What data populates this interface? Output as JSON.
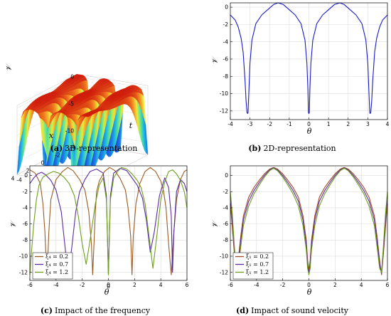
{
  "panels": [
    {
      "tag": "(a)",
      "caption": "3D-representation"
    },
    {
      "tag": "(b)",
      "caption": "2D-representation"
    },
    {
      "tag": "(c)",
      "caption": "Impact of the frequency"
    },
    {
      "tag": "(d)",
      "caption": "Impact of sound velocity"
    }
  ],
  "chart_data": [
    {
      "panel": "a",
      "type": "surface",
      "xlabel": "x",
      "ylabel": "t",
      "zlabel": "𝒱",
      "x_ticks": [
        "-4",
        "-2",
        "0",
        "2",
        "4"
      ],
      "t_ticks": [
        "-4",
        "-2",
        "0",
        "2",
        "4"
      ],
      "z_ticks": [
        "0",
        "-5",
        "-10"
      ],
      "xlim": [
        -4,
        4
      ],
      "tlim": [
        -4,
        4
      ],
      "zlim": [
        -12.3,
        0.5
      ],
      "colormap": [
        "#1726b8",
        "#1f5fe0",
        "#18b6e8",
        "#62e88a",
        "#f0e93a",
        "#f07a1c",
        "#d01c0c"
      ]
    },
    {
      "panel": "b",
      "type": "line",
      "xlabel": "θ",
      "ylabel": "𝒱",
      "xlim": [
        -4,
        4
      ],
      "ylim": [
        -13,
        0.5
      ],
      "x_ticks": [
        -4,
        -3,
        -2,
        -1,
        0,
        1,
        2,
        3,
        4
      ],
      "y_ticks": [
        0,
        -2,
        -4,
        -6,
        -8,
        -10,
        -12
      ],
      "grid": true,
      "series": [
        {
          "color": "#1a1ac8",
          "x": [
            -4,
            -3.75,
            -3.6,
            -3.45,
            -3.35,
            -3.25,
            -3.2,
            -3.15,
            -3.12,
            -3.1,
            -3.05,
            -3.0,
            -2.9,
            -2.7,
            -2.4,
            -2.1,
            -1.8,
            -1.57,
            -1.3,
            -1.0,
            -0.7,
            -0.4,
            -0.2,
            -0.1,
            -0.05,
            -0.02,
            0,
            0.02,
            0.05,
            0.1,
            0.2,
            0.4,
            0.7,
            1.0,
            1.3,
            1.57,
            1.8,
            2.1,
            2.4,
            2.7,
            2.9,
            3.0,
            3.05,
            3.1,
            3.12,
            3.15,
            3.2,
            3.25,
            3.35,
            3.45,
            3.6,
            3.75,
            4
          ],
          "y": [
            -0.9,
            -1.5,
            -2.3,
            -3.6,
            -5.2,
            -8.5,
            -10.8,
            -12.2,
            -12.3,
            -12.2,
            -9.5,
            -6.5,
            -3.8,
            -1.9,
            -0.9,
            -0.3,
            0.3,
            0.5,
            0.3,
            -0.3,
            -0.9,
            -1.9,
            -3.8,
            -6.5,
            -9.5,
            -12.2,
            -12.3,
            -12.2,
            -9.5,
            -6.5,
            -3.8,
            -1.9,
            -0.9,
            -0.3,
            0.3,
            0.5,
            0.3,
            -0.3,
            -0.9,
            -1.9,
            -3.8,
            -6.5,
            -9.5,
            -12.2,
            -12.3,
            -12.2,
            -10.8,
            -8.5,
            -5.2,
            -3.6,
            -2.3,
            -1.5,
            -0.9
          ]
        }
      ]
    },
    {
      "panel": "c",
      "type": "line",
      "xlabel": "θ",
      "ylabel": "𝒱",
      "xlim": [
        -6,
        6
      ],
      "ylim": [
        -13,
        1.2
      ],
      "x_ticks": [
        -6,
        -4,
        -2,
        0,
        2,
        4,
        6
      ],
      "y_ticks": [
        0,
        -2,
        -4,
        -6,
        -8,
        -10,
        -12
      ],
      "grid": true,
      "annotations": [
        {
          "text": "0",
          "x": 0,
          "y": -13.2
        }
      ],
      "legend_position": "bottom-left",
      "series": [
        {
          "name": "ξ₄ = 0.2",
          "color": "#9a5a22",
          "x": [
            -6,
            -5.6,
            -5.2,
            -5.0,
            -4.85,
            -4.75,
            -4.7,
            -4.65,
            -4.55,
            -4.4,
            -4.0,
            -3.5,
            -3.1,
            -2.7,
            -2.2,
            -1.8,
            -1.5,
            -1.3,
            -1.2,
            -1.1,
            -1.0,
            -0.9,
            -0.7,
            -0.3,
            0.1,
            0.5,
            0.9,
            1.3,
            1.5,
            1.7,
            1.8,
            1.9,
            2.1,
            2.4,
            2.8,
            3.2,
            3.6,
            4.0,
            4.2,
            4.4,
            4.6,
            4.8,
            5.0,
            5.2,
            5.5,
            5.8,
            6
          ],
          "y": [
            0.7,
            0.3,
            -1.0,
            -3.5,
            -7.0,
            -11.0,
            -12.4,
            -11.0,
            -7.0,
            -3.0,
            -0.5,
            0.5,
            1.0,
            0.6,
            -0.5,
            -1.8,
            -4.5,
            -8.5,
            -12.3,
            -8.5,
            -4.5,
            -2.0,
            -0.7,
            0.5,
            1.0,
            0.6,
            -0.4,
            -1.8,
            -4.0,
            -7.5,
            -12.3,
            -7.5,
            -3.5,
            -1.0,
            0.5,
            1.0,
            0.5,
            -0.7,
            -1.8,
            -4.0,
            -8.5,
            -12.3,
            -7.0,
            -3.0,
            -0.5,
            0.5,
            0.7
          ]
        },
        {
          "name": "ξ₄ = 0.7",
          "color": "#5a2ca0",
          "x": [
            -6,
            -5.7,
            -5.4,
            -5.1,
            -4.8,
            -4.4,
            -4.0,
            -3.6,
            -3.3,
            -3.1,
            -2.8,
            -2.5,
            -2.2,
            -1.8,
            -1.4,
            -0.9,
            -0.4,
            -0.15,
            0,
            0.15,
            0.4,
            0.9,
            1.4,
            1.8,
            2.2,
            2.6,
            2.9,
            3.2,
            3.5,
            3.9,
            4.3,
            4.6,
            4.8,
            4.9,
            5.0,
            5.2,
            5.5,
            5.8,
            6
          ],
          "y": [
            -1.0,
            -0.3,
            0.2,
            0.4,
            0.1,
            -0.6,
            -1.8,
            -4.5,
            -9.0,
            -12.3,
            -9.0,
            -4.5,
            -2.0,
            -0.5,
            0.5,
            0.8,
            0.3,
            -2.5,
            -12.3,
            -2.5,
            0.3,
            0.9,
            0.6,
            -0.3,
            -1.2,
            -2.8,
            -5.5,
            -9.5,
            -7.0,
            -2.5,
            -0.3,
            -1.5,
            -5.0,
            -12.0,
            -7.0,
            -2.0,
            -0.5,
            -1.0,
            -2.0
          ]
        },
        {
          "name": "ξ₄ = 1.2",
          "color": "#6e9e1c",
          "x": [
            -6,
            -5.9,
            -5.7,
            -5.5,
            -5.3,
            -5.0,
            -4.6,
            -4.2,
            -3.8,
            -3.4,
            -3.0,
            -2.6,
            -2.3,
            -2.0,
            -1.7,
            -1.4,
            -1.0,
            -0.7,
            -0.4,
            -0.15,
            0,
            0.15,
            0.4,
            0.7,
            1.0,
            1.4,
            1.8,
            2.2,
            2.5,
            2.8,
            3.1,
            3.4,
            3.7,
            4.0,
            4.3,
            4.6,
            4.9,
            5.2,
            5.5,
            5.8,
            6
          ],
          "y": [
            -12.3,
            -10.0,
            -6.0,
            -3.0,
            -1.2,
            -0.2,
            0.2,
            0.5,
            0.3,
            -0.2,
            -1.0,
            -2.5,
            -5.0,
            -8.5,
            -11.0,
            -8.0,
            -3.5,
            -1.2,
            -0.3,
            -3.0,
            -12.3,
            -3.0,
            -0.3,
            0.5,
            1.0,
            0.8,
            0.2,
            -0.6,
            -1.5,
            -3.5,
            -7.5,
            -11.5,
            -7.5,
            -3.0,
            -0.8,
            0.5,
            0.7,
            0.2,
            -0.6,
            -2.0,
            -4.0
          ]
        }
      ]
    },
    {
      "panel": "d",
      "type": "line",
      "xlabel": "θ",
      "ylabel": "𝒱",
      "xlim": [
        -6,
        6
      ],
      "ylim": [
        -13,
        1.2
      ],
      "x_ticks": [
        -6,
        -4,
        -2,
        0,
        2,
        4,
        6
      ],
      "y_ticks": [
        0,
        -2,
        -4,
        -6,
        -8,
        -10,
        -12
      ],
      "grid": true,
      "legend_position": "bottom-left",
      "series": [
        {
          "name": "ξ₁ = 0.2",
          "color": "#a04a24",
          "x": [
            -6,
            -5.85,
            -5.7,
            -5.55,
            -5.4,
            -5.2,
            -5.0,
            -4.6,
            -4.2,
            -3.8,
            -3.4,
            -3.0,
            -2.7,
            -2.4,
            -2.0,
            -1.6,
            -1.2,
            -0.8,
            -0.45,
            -0.2,
            -0.1,
            0,
            0.1,
            0.2,
            0.45,
            0.8,
            1.2,
            1.6,
            2.0,
            2.4,
            2.7,
            3.0,
            3.4,
            3.8,
            4.2,
            4.6,
            5.0,
            5.2,
            5.4,
            5.55,
            5.7,
            5.85,
            6
          ],
          "y": [
            -3.5,
            -6.5,
            -9.5,
            -12.3,
            -10.5,
            -7.5,
            -5.0,
            -2.7,
            -1.5,
            -0.6,
            0.2,
            0.8,
            1.0,
            0.8,
            0.2,
            -0.6,
            -1.5,
            -2.7,
            -5.0,
            -8.0,
            -10.5,
            -11.8,
            -10.5,
            -8.0,
            -5.0,
            -2.7,
            -1.5,
            -0.6,
            0.2,
            0.8,
            1.0,
            0.8,
            0.2,
            -0.6,
            -1.5,
            -2.7,
            -5.0,
            -7.5,
            -10.5,
            -12.3,
            -9.5,
            -6.5,
            -3.5
          ]
        },
        {
          "name": "ξ₁ = 0.7",
          "color": "#5a2ca0",
          "x": [
            -6,
            -5.85,
            -5.7,
            -5.55,
            -5.4,
            -5.2,
            -5.0,
            -4.6,
            -4.2,
            -3.8,
            -3.4,
            -3.0,
            -2.7,
            -2.4,
            -2.0,
            -1.6,
            -1.2,
            -0.8,
            -0.45,
            -0.2,
            -0.1,
            0,
            0.1,
            0.2,
            0.45,
            0.8,
            1.2,
            1.6,
            2.0,
            2.4,
            2.7,
            3.0,
            3.4,
            3.8,
            4.2,
            4.6,
            5.0,
            5.2,
            5.4,
            5.55,
            5.7,
            5.85,
            6
          ],
          "y": [
            -2.5,
            -5.5,
            -9.0,
            -12.1,
            -11.0,
            -8.0,
            -5.5,
            -3.2,
            -1.9,
            -0.9,
            0.0,
            0.7,
            0.95,
            0.7,
            0.0,
            -0.9,
            -1.9,
            -3.2,
            -5.5,
            -8.5,
            -11.0,
            -12.1,
            -11.0,
            -8.5,
            -5.5,
            -3.2,
            -1.9,
            -0.9,
            0.0,
            0.7,
            0.95,
            0.7,
            0.0,
            -0.9,
            -1.9,
            -3.2,
            -5.5,
            -8.0,
            -11.0,
            -12.1,
            -9.0,
            -5.5,
            -2.5
          ]
        },
        {
          "name": "ξ₁ = 1.2",
          "color": "#6e9e1c",
          "x": [
            -6,
            -5.85,
            -5.7,
            -5.55,
            -5.4,
            -5.2,
            -5.0,
            -4.6,
            -4.2,
            -3.8,
            -3.4,
            -3.0,
            -2.7,
            -2.4,
            -2.0,
            -1.6,
            -1.2,
            -0.8,
            -0.45,
            -0.2,
            -0.1,
            0,
            0.1,
            0.2,
            0.45,
            0.8,
            1.2,
            1.6,
            2.0,
            2.4,
            2.7,
            3.0,
            3.4,
            3.8,
            4.2,
            4.6,
            5.0,
            5.2,
            5.4,
            5.55,
            5.7,
            5.85,
            6
          ],
          "y": [
            -2.0,
            -4.8,
            -8.5,
            -12.0,
            -11.5,
            -8.8,
            -6.2,
            -3.8,
            -2.3,
            -1.2,
            -0.2,
            0.6,
            0.9,
            0.6,
            -0.2,
            -1.2,
            -2.3,
            -3.8,
            -6.2,
            -9.2,
            -11.5,
            -12.3,
            -11.5,
            -9.2,
            -6.2,
            -3.8,
            -2.3,
            -1.2,
            -0.2,
            0.6,
            0.9,
            0.6,
            -0.2,
            -1.2,
            -2.3,
            -3.8,
            -6.2,
            -8.8,
            -11.5,
            -12.0,
            -8.5,
            -4.8,
            -2.0
          ]
        }
      ]
    }
  ]
}
